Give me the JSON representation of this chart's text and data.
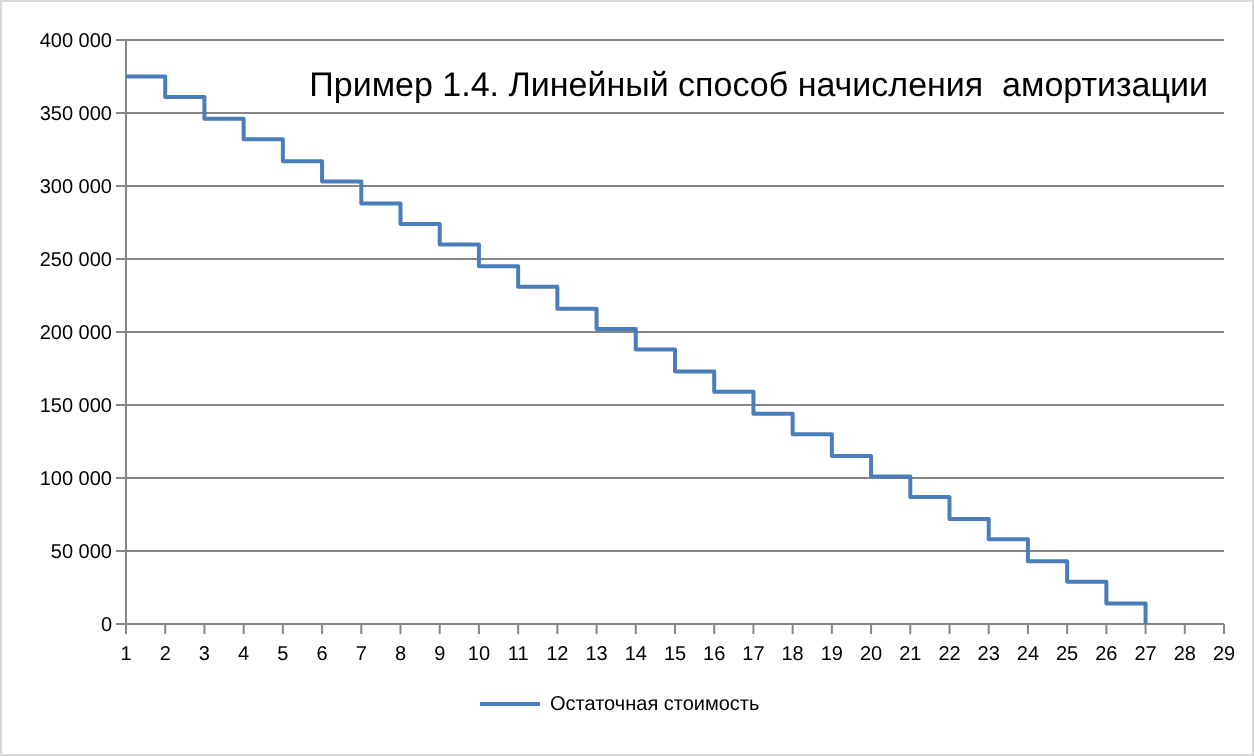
{
  "chart_data": {
    "type": "step",
    "title": "Пример 1.4. Линейный способ начисления  амортизации",
    "x": [
      1,
      2,
      3,
      4,
      5,
      6,
      7,
      8,
      9,
      10,
      11,
      12,
      13,
      14,
      15,
      16,
      17,
      18,
      19,
      20,
      21,
      22,
      23,
      24,
      25,
      26,
      27
    ],
    "series": [
      {
        "name": "Остаточная стоимость",
        "color": "#4a7ebb",
        "values": [
          375000,
          361000,
          346000,
          332000,
          317000,
          303000,
          288000,
          274000,
          260000,
          245000,
          231000,
          216000,
          202000,
          188000,
          173000,
          159000,
          144000,
          130000,
          115000,
          101000,
          87000,
          72000,
          58000,
          43000,
          29000,
          14000,
          0
        ]
      }
    ],
    "xlim": [
      1,
      29
    ],
    "xticks": [
      1,
      2,
      3,
      4,
      5,
      6,
      7,
      8,
      9,
      10,
      11,
      12,
      13,
      14,
      15,
      16,
      17,
      18,
      19,
      20,
      21,
      22,
      23,
      24,
      25,
      26,
      27,
      28,
      29
    ],
    "ylim": [
      0,
      400000
    ],
    "yticks": [
      0,
      {
        "value": 50000,
        "label": "50 000"
      },
      {
        "value": 100000,
        "label": "100 000"
      },
      {
        "value": 150000,
        "label": "150 000"
      },
      {
        "value": 200000,
        "label": "200 000"
      },
      {
        "value": 250000,
        "label": "250 000"
      },
      {
        "value": 300000,
        "label": "300 000"
      },
      {
        "value": 350000,
        "label": "350 000"
      },
      {
        "value": 400000,
        "label": "400 000"
      }
    ],
    "grid": "y",
    "legend": "bottom",
    "line_style": "solid"
  }
}
